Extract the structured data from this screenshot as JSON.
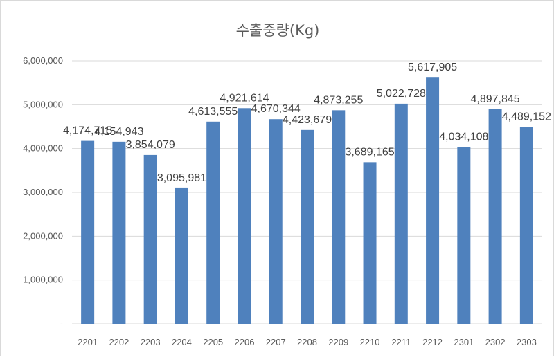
{
  "chart_data": {
    "type": "bar",
    "title": "수출중량(Kg)",
    "xlabel": "",
    "ylabel": "",
    "categories": [
      "2201",
      "2202",
      "2203",
      "2204",
      "2205",
      "2206",
      "2207",
      "2208",
      "2209",
      "2210",
      "2211",
      "2212",
      "2301",
      "2302",
      "2303"
    ],
    "values": [
      4174715,
      4154943,
      3854079,
      3095981,
      4613555,
      4921614,
      4670344,
      4423679,
      4873255,
      3689165,
      5022728,
      5617905,
      4034108,
      4897845,
      4489152
    ],
    "data_labels": [
      "4,174,715",
      "4,154,943",
      "3,854,079",
      "3,095,981",
      "4,613,555",
      "4,921,614",
      "4,670,344",
      "4,423,679",
      "4,873,255",
      "3,689,165",
      "5,022,728",
      "5,617,905",
      "4,034,108",
      "4,897,845",
      "4,489,152"
    ],
    "y_ticks": [
      "-",
      "1,000,000",
      "2,000,000",
      "3,000,000",
      "4,000,000",
      "5,000,000",
      "6,000,000"
    ],
    "ylim": [
      0,
      6000000
    ],
    "grid": true,
    "legend": "none",
    "bar_color": "#4f81bd"
  }
}
